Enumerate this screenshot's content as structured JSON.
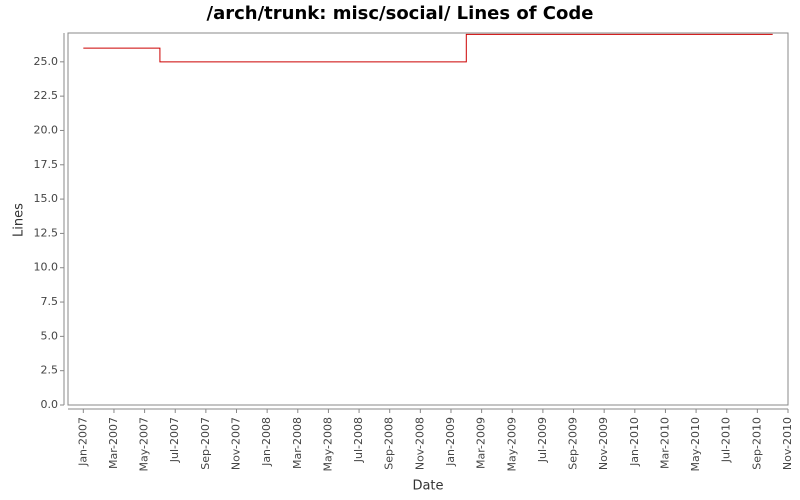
{
  "chart_data": {
    "type": "line",
    "title": "/arch/trunk: misc/social/ Lines of Code",
    "x_label": "Date",
    "y_label": "Lines",
    "step": true,
    "x": [
      "2007-01",
      "2007-06",
      "2009-02",
      "2010-10"
    ],
    "series": [
      {
        "name": "Lines",
        "color": "#cc0000",
        "values": [
          26,
          25,
          27,
          27
        ]
      }
    ],
    "xlim": [
      "2006-12",
      "2010-11"
    ],
    "xticks": [
      {
        "value": "2007-01",
        "label": "Jan-2007"
      },
      {
        "value": "2007-03",
        "label": "Mar-2007"
      },
      {
        "value": "2007-05",
        "label": "May-2007"
      },
      {
        "value": "2007-07",
        "label": "Jul-2007"
      },
      {
        "value": "2007-09",
        "label": "Sep-2007"
      },
      {
        "value": "2007-11",
        "label": "Nov-2007"
      },
      {
        "value": "2008-01",
        "label": "Jan-2008"
      },
      {
        "value": "2008-03",
        "label": "Mar-2008"
      },
      {
        "value": "2008-05",
        "label": "May-2008"
      },
      {
        "value": "2008-07",
        "label": "Jul-2008"
      },
      {
        "value": "2008-09",
        "label": "Sep-2008"
      },
      {
        "value": "2008-11",
        "label": "Nov-2008"
      },
      {
        "value": "2009-01",
        "label": "Jan-2009"
      },
      {
        "value": "2009-03",
        "label": "Mar-2009"
      },
      {
        "value": "2009-05",
        "label": "May-2009"
      },
      {
        "value": "2009-07",
        "label": "Jul-2009"
      },
      {
        "value": "2009-09",
        "label": "Sep-2009"
      },
      {
        "value": "2009-11",
        "label": "Nov-2009"
      },
      {
        "value": "2010-01",
        "label": "Jan-2010"
      },
      {
        "value": "2010-03",
        "label": "Mar-2010"
      },
      {
        "value": "2010-05",
        "label": "May-2010"
      },
      {
        "value": "2010-07",
        "label": "Jul-2010"
      },
      {
        "value": "2010-09",
        "label": "Sep-2010"
      },
      {
        "value": "2010-11",
        "label": "Nov-2010"
      }
    ],
    "ylim": [
      0,
      27.1
    ],
    "yticks": [
      {
        "value": 0,
        "label": "0.0"
      },
      {
        "value": 2.5,
        "label": "2.5"
      },
      {
        "value": 5,
        "label": "5.0"
      },
      {
        "value": 7.5,
        "label": "7.5"
      },
      {
        "value": 10,
        "label": "10.0"
      },
      {
        "value": 12.5,
        "label": "12.5"
      },
      {
        "value": 15,
        "label": "15.0"
      },
      {
        "value": 17.5,
        "label": "17.5"
      },
      {
        "value": 20,
        "label": "20.0"
      },
      {
        "value": 22.5,
        "label": "22.5"
      },
      {
        "value": 25,
        "label": "25.0"
      }
    ],
    "grid": false
  }
}
